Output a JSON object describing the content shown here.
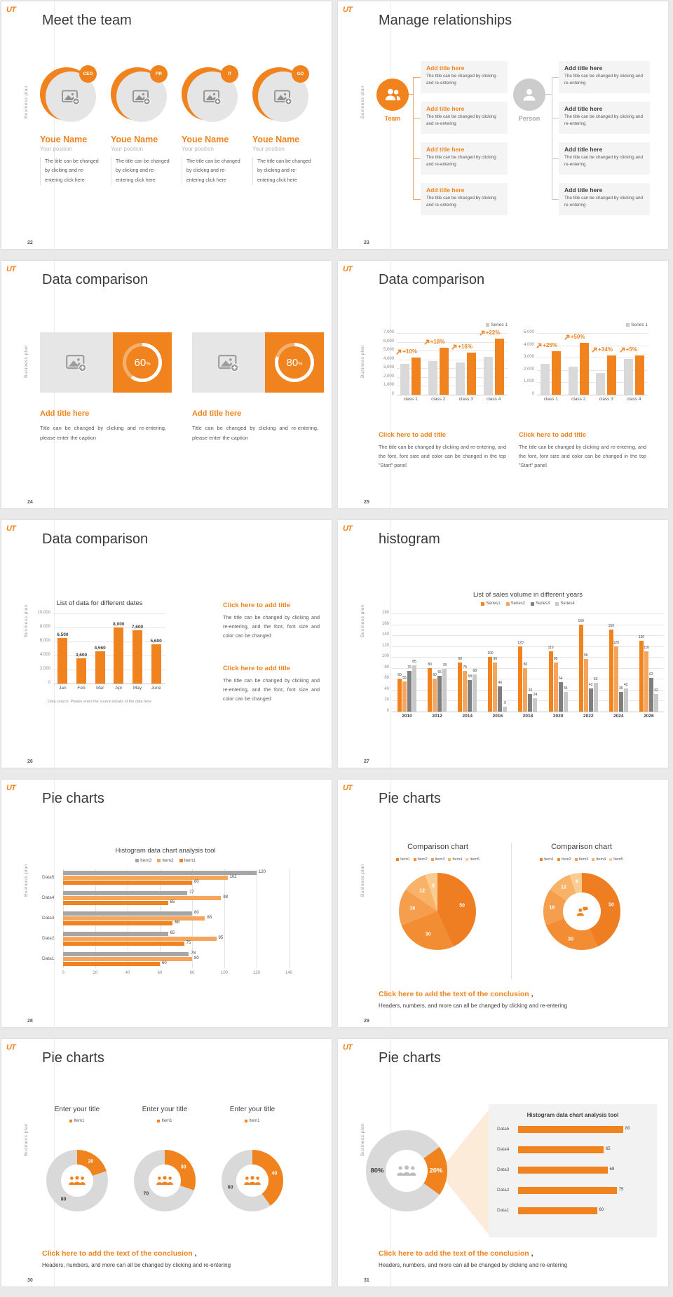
{
  "theme": {
    "accent": "#F0831E",
    "accent_light": "#F6A55C",
    "gray_bar": "#D9D9D9",
    "gray_bar_mid": "#A6A6A6",
    "gray_dark": "#7F7F7F",
    "panel_bg": "#F2F2F2",
    "title_color": "#3A3A3A",
    "body_color": "#595959"
  },
  "common": {
    "logo": "UT",
    "sidebar_label": "Business plan"
  },
  "slides": {
    "s22": {
      "number": "22",
      "title": "Meet the team",
      "members": [
        {
          "badge": "CEO",
          "name": "Youe Name",
          "position": "Your position",
          "body": "The title can be changed by clicking and re-entering click here"
        },
        {
          "badge": "PR",
          "name": "Youe Name",
          "position": "Your position",
          "body": "The title can be changed by clicking and re-entering click here"
        },
        {
          "badge": "IT",
          "name": "Youe Name",
          "position": "Your position",
          "body": "The title can be changed by clicking and re-entering click here"
        },
        {
          "badge": "GD",
          "name": "Youe Name",
          "position": "Your position",
          "body": "The title can be changed by clicking and re-entering click here"
        }
      ]
    },
    "s23": {
      "number": "23",
      "title": "Manage relationships",
      "team_label": "Team",
      "person_label": "Person",
      "left_items": [
        {
          "title": "Add title here",
          "body": "The title can be changed by clicking and re-entering"
        },
        {
          "title": "Add title here",
          "body": "The title can be changed by clicking and re-entering"
        },
        {
          "title": "Add title here",
          "body": "The title can be changed by clicking and re-entering"
        },
        {
          "title": "Add title here",
          "body": "The title can be changed by clicking and re-entering"
        }
      ],
      "right_items": [
        {
          "title": "Add title here",
          "body": "The title can be changed by clicking and re-entering"
        },
        {
          "title": "Add title here",
          "body": "The title can be changed by clicking and re-entering"
        },
        {
          "title": "Add title here",
          "body": "The title can be changed by clicking and re-entering"
        },
        {
          "title": "Add title here",
          "body": "The title can be changed by clicking and re-entering"
        }
      ]
    },
    "s24": {
      "number": "24",
      "title": "Data comparison",
      "cards": [
        {
          "percent": 60,
          "unit": "%",
          "title": "Add title here",
          "body": "Title can be changed by clicking and re-entering, please enter the caption"
        },
        {
          "percent": 80,
          "unit": "%",
          "title": "Add title here",
          "body": "Title can be changed by clicking and re-entering, please enter the caption"
        }
      ]
    },
    "s25": {
      "number": "25",
      "title": "Data comparison",
      "blocks": [
        {
          "title": "Click here to add title",
          "body": "The title can be changed by clicking and re-entering, and the font, font size and color can be changed in the top \"Start\" panel"
        },
        {
          "title": "Click here to add title",
          "body": "The title can be changed by clicking and re-entering, and the font, font size and color can be changed in the top \"Start\" panel"
        }
      ]
    },
    "s26": {
      "number": "26",
      "title": "Data comparison",
      "blocks": [
        {
          "title": "Click here to add title",
          "body": "The title can be changed by clicking and re-entering, and the font, font size and color can be changed"
        },
        {
          "title": "Click here to add title",
          "body": "The title can be changed by clicking and re-entering, and the font, font size and color can be changed"
        }
      ]
    },
    "s27": {
      "number": "27",
      "title": "histogram"
    },
    "s28": {
      "number": "28",
      "title": "Pie charts"
    },
    "s29": {
      "number": "29",
      "title": "Pie charts",
      "conclusion": {
        "highlight": "Click here to add the text of the conclusion",
        "suffix": " ,",
        "body": "Headers, numbers, and more can all be changed by clicking and re-entering"
      }
    },
    "s30": {
      "number": "30",
      "title": "Pie charts",
      "conclusion": {
        "highlight": "Click here to add the text of the conclusion",
        "suffix": " ,",
        "body": "Headers, numbers, and more can all be changed by clicking and re-entering"
      }
    },
    "s31": {
      "number": "31",
      "title": "Pie charts",
      "conclusion": {
        "highlight": "Click here to add the text of the conclusion",
        "suffix": " ,",
        "body": "Headers, numbers, and more can all be changed by clicking and re-entering"
      }
    }
  },
  "chart_data": [
    {
      "id": "growth_a",
      "type": "bar",
      "legend": [
        "Series 1"
      ],
      "legend_colors": [
        "#C9C9C9"
      ],
      "categories": [
        "class 1",
        "class 2",
        "class 3",
        "class 4"
      ],
      "series": [
        {
          "name": "base",
          "color": "#D9D9D9",
          "values": [
            3500,
            3800,
            3700,
            4300
          ]
        },
        {
          "name": "Series 1",
          "color": "#F0831E",
          "values": [
            4200,
            5300,
            4800,
            6400
          ]
        }
      ],
      "growth_labels": [
        "+10%",
        "+18%",
        "+16%",
        "+22%"
      ],
      "ylim": [
        0,
        7000
      ],
      "ystep": 1000
    },
    {
      "id": "growth_b",
      "type": "bar",
      "legend": [
        "Series 1"
      ],
      "legend_colors": [
        "#C9C9C9"
      ],
      "categories": [
        "class 1",
        "class 2",
        "class 3",
        "class 4"
      ],
      "series": [
        {
          "name": "base",
          "color": "#D9D9D9",
          "values": [
            2500,
            2300,
            1750,
            2900
          ]
        },
        {
          "name": "Series 1",
          "color": "#F0831E",
          "values": [
            3500,
            4200,
            3200,
            3200
          ]
        }
      ],
      "growth_labels": [
        "+25%",
        "+50%",
        "+34%",
        "+5%"
      ],
      "ylim": [
        0,
        5000
      ],
      "ystep": 1000
    },
    {
      "id": "dates",
      "type": "bar",
      "title": "List of data for different dates",
      "categories": [
        "Jan",
        "Feb",
        "Mar",
        "Apr",
        "May",
        "June"
      ],
      "series": [
        {
          "name": "data",
          "color": "#F0831E",
          "values": [
            6500,
            3600,
            4560,
            8000,
            7600,
            5600
          ]
        }
      ],
      "ylim": [
        0,
        10000
      ],
      "ystep": 2000,
      "footnote": "Data source: Please enter the source details of the data here"
    },
    {
      "id": "years",
      "type": "bar",
      "title": "List of sales volume in different years",
      "legend": [
        "Series1",
        "Series2",
        "Series3",
        "Series4"
      ],
      "categories": [
        "2010",
        "2012",
        "2014",
        "2016",
        "2018",
        "2020",
        "2022",
        "2024",
        "2026"
      ],
      "series": [
        {
          "name": "Series1",
          "color": "#F0831E",
          "values": [
            60,
            80,
            90,
            100,
            120,
            110,
            160,
            150,
            130
          ]
        },
        {
          "name": "Series2",
          "color": "#F6A55C",
          "values": [
            55,
            60,
            75,
            90,
            80,
            90,
            96,
            120,
            110
          ]
        },
        {
          "name": "Series3",
          "color": "#7F7F7F",
          "values": [
            75,
            65,
            58,
            46,
            32,
            54,
            42,
            36,
            62
          ]
        },
        {
          "name": "Series4",
          "color": "#C9C9C9",
          "values": [
            85,
            78,
            68,
            9,
            24,
            36,
            53,
            42,
            32
          ]
        }
      ],
      "ylim": [
        0,
        180
      ],
      "ystep": 20
    },
    {
      "id": "hbars",
      "type": "bar-horizontal",
      "title": "Histogram data chart analysis tool",
      "legend": [
        "Item3",
        "Item2",
        "Item1"
      ],
      "categories": [
        "Data1",
        "Data2",
        "Data3",
        "Data4",
        "Data5"
      ],
      "series": [
        {
          "name": "Item3",
          "color": "#A6A6A6",
          "values": [
            78,
            65,
            80,
            77,
            120
          ]
        },
        {
          "name": "Item2",
          "color": "#F6A55C",
          "values": [
            80,
            95,
            88,
            98,
            102
          ]
        },
        {
          "name": "Item1",
          "color": "#F0831E",
          "values": [
            60,
            75,
            68,
            65,
            80
          ]
        }
      ],
      "xlim": [
        0,
        140
      ],
      "xstep": 20
    },
    {
      "id": "pie_a",
      "type": "pie",
      "title": "Comparison chart",
      "legend": [
        "Item1",
        "Item2",
        "Item3",
        "Item4",
        "Item5"
      ],
      "values": [
        50,
        30,
        18,
        12,
        6
      ],
      "colors": [
        "#EF7D22",
        "#F38D33",
        "#F59E4E",
        "#F8B369",
        "#FACC92"
      ]
    },
    {
      "id": "pie_b",
      "type": "donut",
      "title": "Comparison chart",
      "legend": [
        "Item1",
        "Item2",
        "Item3",
        "Item4",
        "Item5"
      ],
      "values": [
        50,
        30,
        18,
        12,
        6
      ],
      "colors": [
        "#EF7D22",
        "#F38D33",
        "#F59E4E",
        "#F8B369",
        "#FACC92"
      ]
    },
    {
      "id": "donut_20",
      "type": "donut",
      "title": "Enter your title",
      "legend": [
        "Item1"
      ],
      "legend_colors": [
        "#F0831E"
      ],
      "values": [
        20,
        80
      ],
      "colors": [
        "#F0831E",
        "#D9D9D9"
      ]
    },
    {
      "id": "donut_30",
      "type": "donut",
      "title": "Enter your title",
      "legend": [
        "Item1"
      ],
      "legend_colors": [
        "#F0831E"
      ],
      "values": [
        30,
        70
      ],
      "colors": [
        "#F0831E",
        "#D9D9D9"
      ]
    },
    {
      "id": "donut_40",
      "type": "donut",
      "title": "Enter your title",
      "legend": [
        "Item1"
      ],
      "legend_colors": [
        "#F0831E"
      ],
      "values": [
        40,
        60
      ],
      "colors": [
        "#F0831E",
        "#D9D9D9"
      ]
    },
    {
      "id": "donut_80_20",
      "type": "donut",
      "values": [
        20,
        80
      ],
      "labels": [
        "20%",
        "80%"
      ],
      "colors": [
        "#F0831E",
        "#D9D9D9"
      ]
    },
    {
      "id": "panel_bars",
      "type": "bar-horizontal",
      "title": "Histogram data chart analysis tool",
      "categories": [
        "Data1",
        "Data2",
        "Data3",
        "Data4",
        "Data5"
      ],
      "values": [
        60,
        75,
        68,
        65,
        80
      ],
      "color": "#F0831E"
    }
  ]
}
